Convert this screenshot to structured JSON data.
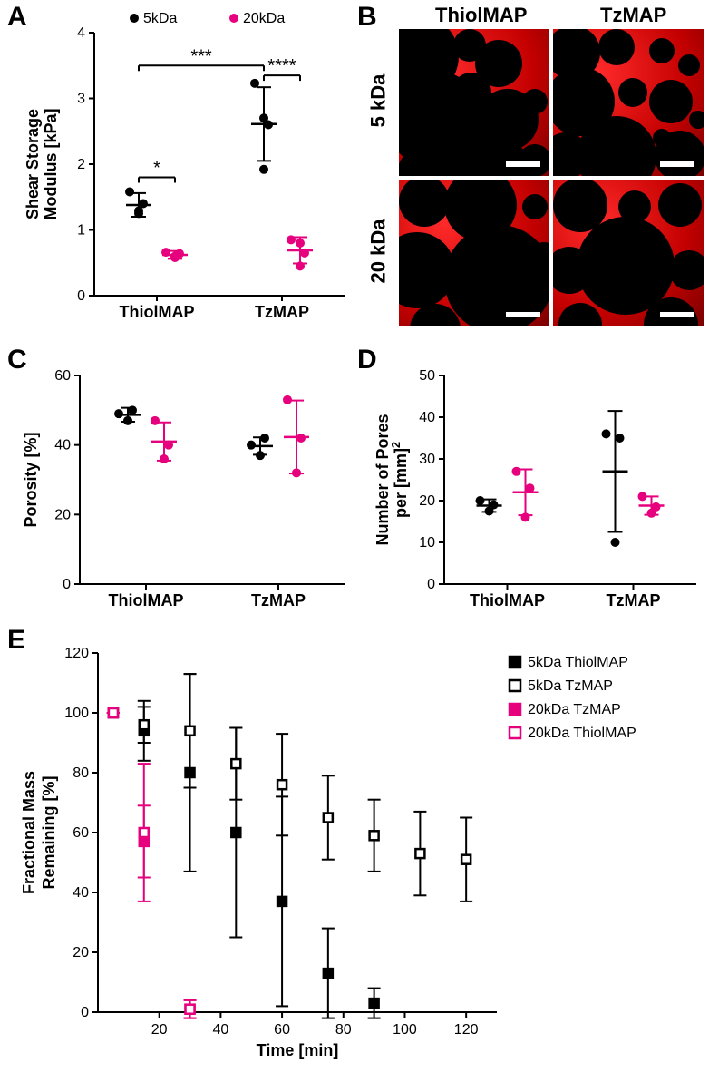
{
  "labels": {
    "A": "A",
    "B": "B",
    "C": "C",
    "D": "D",
    "E": "E"
  },
  "colors": {
    "black": "#000000",
    "pink": "#e6007d",
    "axis": "#000000",
    "bg": "#ffffff"
  },
  "panelA": {
    "type": "scatter-categorical",
    "ylabel_line1": "Shear Storage",
    "ylabel_line2": "Modulus [kPa]",
    "ylim": [
      0,
      4
    ],
    "yticks": [
      0,
      1,
      2,
      3,
      4
    ],
    "groups": [
      "ThiolMAP",
      "TzMAP"
    ],
    "legend": [
      {
        "label": "5kDa",
        "color": "#000000",
        "marker": "circle"
      },
      {
        "label": "20kDa",
        "color": "#e6007d",
        "marker": "circle"
      }
    ],
    "data": {
      "ThiolMAP": {
        "5kDa": {
          "points": [
            1.29,
            1.4,
            1.58,
            1.25
          ],
          "mean": 1.38,
          "err": 0.18,
          "color": "#000000"
        },
        "20kDa": {
          "points": [
            0.58,
            0.64,
            0.66,
            0.6
          ],
          "mean": 0.62,
          "err": 0.06,
          "color": "#e6007d"
        }
      },
      "TzMAP": {
        "5kDa": {
          "points": [
            2.7,
            2.6,
            3.23,
            1.92
          ],
          "mean": 2.61,
          "err": 0.56,
          "color": "#000000"
        },
        "20kDa": {
          "points": [
            0.45,
            0.65,
            0.85,
            0.8
          ],
          "mean": 0.69,
          "err": 0.2,
          "color": "#e6007d"
        }
      }
    },
    "sig": [
      {
        "from": "ThiolMAP-5kDa",
        "to": "ThiolMAP-20kDa",
        "label": "*",
        "y": 1.8
      },
      {
        "from": "ThiolMAP-5kDa",
        "to": "TzMAP-5kDa",
        "label": "***",
        "y": 3.5
      },
      {
        "from": "TzMAP-5kDa",
        "to": "TzMAP-20kDa",
        "label": "****",
        "y": 3.35
      }
    ],
    "label_fontsize": 18,
    "tick_fontsize": 16,
    "marker_size": 5
  },
  "panelB": {
    "col_labels": [
      "ThiolMAP",
      "TzMAP"
    ],
    "row_labels": [
      "5 kDa",
      "20 kDa"
    ],
    "cells": {
      "tl": {
        "bubbles": [
          [
            20,
            30,
            46
          ],
          [
            78,
            18,
            18
          ],
          [
            110,
            38,
            26
          ],
          [
            40,
            100,
            54
          ],
          [
            120,
            100,
            34
          ],
          [
            5,
            80,
            14
          ],
          [
            80,
            70,
            22
          ],
          [
            150,
            80,
            14
          ],
          [
            30,
            160,
            32
          ],
          [
            100,
            160,
            46
          ],
          [
            150,
            145,
            18
          ]
        ]
      },
      "tr": {
        "bubbles": [
          [
            22,
            26,
            30
          ],
          [
            70,
            20,
            20
          ],
          [
            120,
            24,
            14
          ],
          [
            150,
            40,
            12
          ],
          [
            30,
            80,
            38
          ],
          [
            88,
            70,
            16
          ],
          [
            130,
            80,
            24
          ],
          [
            14,
            140,
            26
          ],
          [
            70,
            140,
            44
          ],
          [
            140,
            140,
            28
          ],
          [
            160,
            100,
            10
          ],
          [
            120,
            120,
            10
          ]
        ]
      },
      "bl": {
        "bubbles": [
          [
            28,
            24,
            28
          ],
          [
            90,
            28,
            40
          ],
          [
            150,
            30,
            14
          ],
          [
            20,
            100,
            42
          ],
          [
            110,
            110,
            60
          ],
          [
            160,
            85,
            16
          ],
          [
            40,
            165,
            28
          ]
        ]
      },
      "br": {
        "bubbles": [
          [
            30,
            28,
            30
          ],
          [
            90,
            30,
            18
          ],
          [
            140,
            28,
            24
          ],
          [
            18,
            100,
            26
          ],
          [
            80,
            95,
            54
          ],
          [
            150,
            100,
            22
          ],
          [
            30,
            160,
            24
          ],
          [
            130,
            160,
            30
          ]
        ]
      }
    },
    "scalebar_width": 38
  },
  "panelC": {
    "type": "scatter-categorical",
    "ylabel": "Porosity [%]",
    "ylim": [
      0,
      60
    ],
    "yticks": [
      0,
      20,
      40,
      60
    ],
    "groups": [
      "ThiolMAP",
      "TzMAP"
    ],
    "data": {
      "ThiolMAP": {
        "5kDa": {
          "points": [
            47,
            50,
            49
          ],
          "mean": 48.7,
          "err": 2.0,
          "color": "#000000"
        },
        "20kDa": {
          "points": [
            36,
            40,
            47
          ],
          "mean": 41.0,
          "err": 5.5,
          "color": "#e6007d"
        }
      },
      "TzMAP": {
        "5kDa": {
          "points": [
            37,
            42,
            40
          ],
          "mean": 39.7,
          "err": 2.5,
          "color": "#000000"
        },
        "20kDa": {
          "points": [
            32,
            42,
            53
          ],
          "mean": 42.3,
          "err": 10.5,
          "color": "#e6007d"
        }
      }
    },
    "label_fontsize": 18,
    "tick_fontsize": 16,
    "marker_size": 5
  },
  "panelD": {
    "type": "scatter-categorical",
    "ylabel_line1": "Number of Pores",
    "ylabel_line2": "per [mm]",
    "ylabel_sup": "2",
    "ylim": [
      0,
      50
    ],
    "yticks": [
      0,
      10,
      20,
      30,
      40,
      50
    ],
    "groups": [
      "ThiolMAP",
      "TzMAP"
    ],
    "data": {
      "ThiolMAP": {
        "5kDa": {
          "points": [
            17.5,
            19,
            20
          ],
          "mean": 18.8,
          "err": 1.5,
          "color": "#000000"
        },
        "20kDa": {
          "points": [
            16,
            23,
            27
          ],
          "mean": 22.0,
          "err": 5.5,
          "color": "#e6007d"
        }
      },
      "TzMAP": {
        "5kDa": {
          "points": [
            10,
            35,
            36
          ],
          "mean": 27.0,
          "err": 14.5,
          "color": "#000000"
        },
        "20kDa": {
          "points": [
            17,
            18.5,
            21
          ],
          "mean": 18.8,
          "err": 2.2,
          "color": "#e6007d"
        }
      }
    },
    "label_fontsize": 18,
    "tick_fontsize": 16,
    "marker_size": 5
  },
  "panelE": {
    "type": "timeseries-scatter",
    "xlabel": "Time [min]",
    "ylabel_line1": "Fractional Mass",
    "ylabel_line2": "Remaining [%]",
    "xlim": [
      0,
      130
    ],
    "xticks": [
      20,
      40,
      60,
      80,
      100,
      120
    ],
    "ylim": [
      0,
      120
    ],
    "yticks": [
      0,
      20,
      40,
      60,
      80,
      100,
      120
    ],
    "legend": [
      {
        "label": "5kDa ThiolMAP",
        "marker": "square-filled",
        "color": "#000000"
      },
      {
        "label": "5kDa TzMAP",
        "marker": "square-open",
        "color": "#000000"
      },
      {
        "label": "20kDa TzMAP",
        "marker": "square-filled",
        "color": "#e6007d"
      },
      {
        "label": "20kDa ThiolMAP",
        "marker": "square-open",
        "color": "#e6007d"
      }
    ],
    "series": {
      "5kDa ThiolMAP": {
        "color": "#000000",
        "fill": true,
        "t": [
          5,
          15,
          30,
          45,
          60,
          75,
          90
        ],
        "y": [
          100,
          94,
          80,
          60,
          37,
          13,
          3
        ],
        "err": [
          0,
          10,
          33,
          35,
          35,
          15,
          5
        ]
      },
      "5kDa TzMAP": {
        "color": "#000000",
        "fill": false,
        "t": [
          5,
          15,
          30,
          45,
          60,
          75,
          90,
          105,
          120
        ],
        "y": [
          100,
          96,
          94,
          83,
          76,
          65,
          59,
          53,
          51
        ],
        "err": [
          0,
          6,
          19,
          12,
          17,
          14,
          12,
          14,
          14
        ]
      },
      "20kDa TzMAP": {
        "color": "#e6007d",
        "fill": true,
        "t": [
          5,
          15,
          30
        ],
        "y": [
          100,
          57,
          1
        ],
        "err": [
          0,
          12,
          3
        ]
      },
      "20kDa ThiolMAP": {
        "color": "#e6007d",
        "fill": false,
        "t": [
          5,
          15,
          30
        ],
        "y": [
          100,
          60,
          1
        ],
        "err": [
          0,
          23,
          3
        ]
      }
    },
    "label_fontsize": 18,
    "tick_fontsize": 16,
    "marker_size": 10
  }
}
